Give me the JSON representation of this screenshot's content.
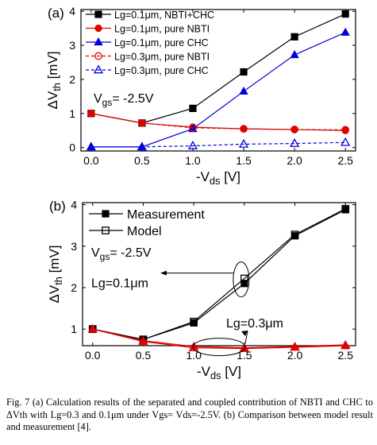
{
  "chart_data": [
    {
      "type": "line",
      "panel_label": "(a)",
      "xlabel_main": "-V",
      "xlabel_sub": "ds",
      "xlabel_unit": " [V]",
      "ylabel_main": "ΔV",
      "ylabel_sub": "th",
      "ylabel_unit": " [mV]",
      "xlim": [
        -0.1,
        2.6
      ],
      "ylim": [
        -0.1,
        4.05
      ],
      "xticks": [
        "0.0",
        "0.5",
        "1.0",
        "1.5",
        "2.0",
        "2.5"
      ],
      "yticks": [
        "0",
        "1",
        "2",
        "3",
        "4"
      ],
      "annotation": "V",
      "annotation_sub": "gs",
      "annotation_value": "= -2.5V",
      "x": [
        0.0,
        0.5,
        1.0,
        1.5,
        2.0,
        2.5
      ],
      "series": [
        {
          "name": "Lg=0.1μm, NBTI+CHC",
          "values": [
            1.0,
            0.72,
            1.15,
            2.22,
            3.25,
            3.92
          ],
          "color": "#000000",
          "marker": "filled-square",
          "dash": "solid"
        },
        {
          "name": "Lg=0.1μm, pure NBTI",
          "values": [
            1.0,
            0.72,
            0.6,
            0.55,
            0.53,
            0.5
          ],
          "color": "#e00000",
          "marker": "filled-circle",
          "dash": "solid"
        },
        {
          "name": "Lg=0.1μm, pure CHC",
          "values": [
            0.02,
            0.02,
            0.55,
            1.65,
            2.72,
            3.38
          ],
          "color": "#0000e0",
          "marker": "filled-triangle",
          "dash": "solid"
        },
        {
          "name": "Lg=0.3μm, pure NBTI",
          "values": [
            1.0,
            0.72,
            0.58,
            0.55,
            0.53,
            0.52
          ],
          "color": "#e00000",
          "marker": "open-circle",
          "dash": "dashed"
        },
        {
          "name": "Lg=0.3μm, pure CHC",
          "values": [
            0.02,
            0.02,
            0.05,
            0.1,
            0.12,
            0.15
          ],
          "color": "#0000e0",
          "marker": "open-triangle",
          "dash": "dashed"
        }
      ]
    },
    {
      "type": "line",
      "panel_label": "(b)",
      "xlabel_main": "-V",
      "xlabel_sub": "ds",
      "xlabel_unit": " [V]",
      "ylabel_main": "ΔV",
      "ylabel_sub": "th",
      "ylabel_unit": " [mV]",
      "xlim": [
        -0.1,
        2.6
      ],
      "ylim": [
        0.6,
        4.05
      ],
      "xticks": [
        "0.0",
        "0.5",
        "1.0",
        "1.5",
        "2.0",
        "2.5"
      ],
      "yticks": [
        "1",
        "2",
        "3",
        "4"
      ],
      "annotation": "V",
      "annotation_sub": "gs",
      "annotation_value": "= -2.5V",
      "label_01": "Lg=0.1μm",
      "label_03": "Lg=0.3μm",
      "x": [
        0.0,
        0.5,
        1.0,
        1.5,
        2.0,
        2.5
      ],
      "series": [
        {
          "name": "Measurement",
          "group": "Lg=0.1μm",
          "values": [
            1.0,
            0.75,
            1.15,
            2.1,
            3.25,
            3.88
          ],
          "color": "#000000",
          "marker": "filled-square"
        },
        {
          "name": "Model",
          "group": "Lg=0.1μm",
          "values": [
            1.0,
            0.75,
            1.18,
            2.22,
            3.28,
            3.9
          ],
          "color": "#000000",
          "marker": "open-square"
        },
        {
          "group": "Lg=0.3μm",
          "values": [
            1.0,
            0.72,
            0.58,
            0.55,
            0.58,
            0.62
          ],
          "color": "#e00000",
          "marker": "filled-triangle"
        },
        {
          "group": "Lg=0.3μm",
          "values": [
            1.0,
            0.7,
            0.55,
            0.53,
            0.56,
            0.6
          ],
          "color": "#e00000",
          "marker": "open-triangle"
        }
      ]
    }
  ],
  "caption": "Fig. 7 (a) Calculation results of the separated and coupled contribution of NBTI and CHC to ΔVth with Lg=0.3 and 0.1μm under Vgs= Vds=-2.5V. (b) Comparison between model result and measurement [4]."
}
